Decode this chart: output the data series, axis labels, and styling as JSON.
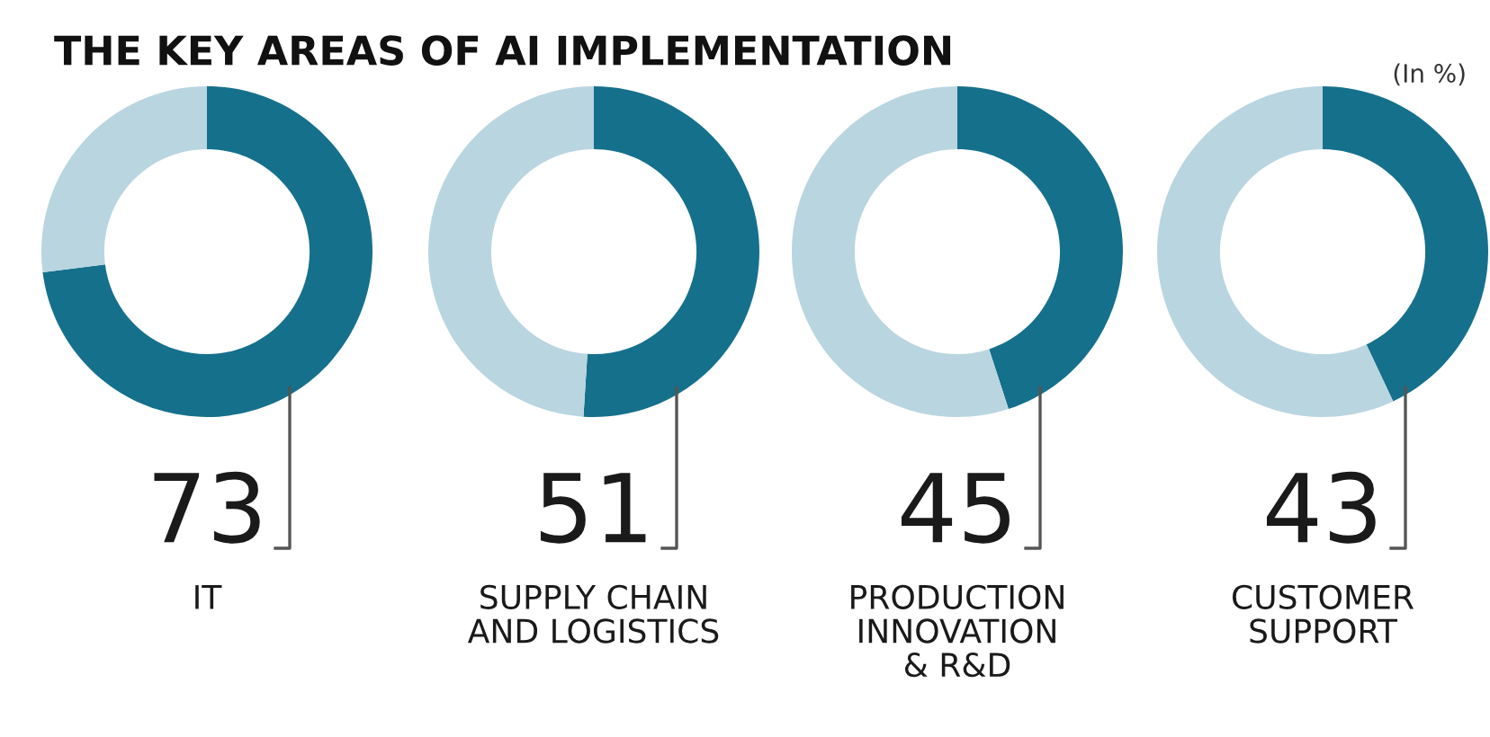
{
  "chart_data": [
    {
      "type": "donut",
      "title": "THE KEY AREAS OF AI IMPLEMENTATION",
      "xlabel": "IT",
      "categories": [
        null,
        null
      ],
      "values": [
        73,
        27
      ],
      "colors": [
        "#15708c",
        "#b9d5e0"
      ],
      "value_labels": [
        "73",
        null
      ],
      "legend": false
    },
    {
      "type": "donut",
      "xlabel": "SUPPLY CHAIN\nAND LOGISTICS",
      "categories": [
        null,
        null
      ],
      "values": [
        51,
        49
      ],
      "colors": [
        "#15708c",
        "#b9d5e0"
      ],
      "value_labels": [
        "51",
        null
      ],
      "legend": false
    },
    {
      "type": "donut",
      "xlabel": "PRODUCTION\nINNOVATION\n& R&D",
      "categories": [
        null,
        null
      ],
      "values": [
        45,
        55
      ],
      "colors": [
        "#15708c",
        "#b9d5e0"
      ],
      "value_labels": [
        "45",
        null
      ],
      "legend": false
    },
    {
      "type": "donut",
      "annotations": [
        "(In %)"
      ],
      "xlabel": "CUSTOMER\nSUPPORT",
      "categories": [
        null,
        null
      ],
      "values": [
        43,
        57
      ],
      "colors": [
        "#15708c",
        "#b9d5e0"
      ],
      "value_labels": [
        "43",
        null
      ],
      "legend": false
    }
  ]
}
